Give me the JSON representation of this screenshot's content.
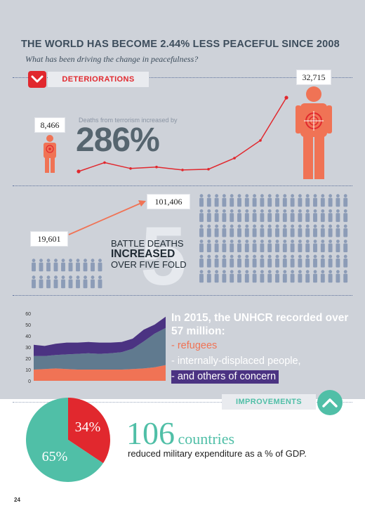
{
  "header": {
    "title": "THE WORLD HAS BECOME 2.44% LESS PEACEFUL SINCE 2008",
    "subtitle": "What has been driving the change in peacefulness?"
  },
  "deteriorations": {
    "label": "DETERIORATIONS",
    "icon": "chevron-down-icon",
    "color": "#e1282e",
    "terror_start": "8,466",
    "terror_end": "32,715",
    "terror_caption": "Deaths from terrorism increased by",
    "terror_pct": "286%",
    "terror_trend": [
      0.0,
      0.12,
      0.04,
      0.06,
      0.02,
      0.03,
      0.18,
      0.42,
      1.0
    ],
    "battle_start": "19,601",
    "battle_end": "101,406",
    "battle_line1": "BATTLE DEATHS",
    "battle_line2": "INCREASED",
    "battle_line3": "OVER FIVE FOLD",
    "battle_big": "5"
  },
  "chart_data": {
    "type": "area",
    "ylim": [
      0,
      60
    ],
    "yticks": [
      "0",
      "10",
      "20",
      "30",
      "40",
      "50",
      "60"
    ],
    "x_points": 13,
    "series": [
      {
        "values": [
          10,
          10.5,
          11,
          10.5,
          10,
          10,
          10,
          10,
          10,
          10.5,
          11,
          12,
          14
        ]
      },
      {
        "values": [
          12,
          11.5,
          12,
          13,
          14,
          14.5,
          14,
          14.5,
          15.5,
          18,
          24,
          30,
          33
        ]
      },
      {
        "values": [
          10,
          9,
          10,
          10.5,
          10,
          10,
          10,
          9.5,
          9,
          9,
          10.5,
          8,
          10
        ]
      }
    ],
    "colors": [
      "#f07355",
      "#607a8f",
      "#4b3382"
    ]
  },
  "unhcr": {
    "title": "In 2015, the UNHCR recorded over 57 million:",
    "legend": [
      "- refugees",
      "- internally-displaced people,",
      "- and others of concern"
    ]
  },
  "improvements": {
    "label": "IMPROVEMENTS",
    "icon": "chevron-up-icon",
    "color": "#50bfa7",
    "count": "106",
    "count_word": "countries",
    "caption": "reduced military expenditure as a % of GDP.",
    "pie": [
      {
        "label": "34%",
        "value": 34,
        "color": "#e1282e"
      },
      {
        "label": "65%",
        "value": 65,
        "color": "#50bfa7"
      }
    ]
  },
  "footer": {
    "page_number": "24"
  }
}
